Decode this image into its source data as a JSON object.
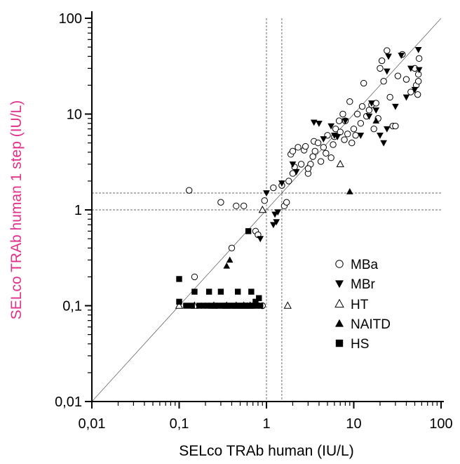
{
  "chart_data": {
    "type": "scatter",
    "title": "",
    "xlabel": "SELco TRAb human  (IU/L)",
    "ylabel": "SELco TRAb human 1 step (IU/L)",
    "ylabel_color": "#e0308a",
    "xscale": "log",
    "yscale": "log",
    "xlim": [
      0.01,
      100
    ],
    "ylim": [
      0.01,
      100
    ],
    "x_ticks": [
      0.01,
      0.1,
      1,
      10,
      100
    ],
    "y_ticks": [
      0.01,
      0.1,
      1,
      10,
      100
    ],
    "x_tick_labels": [
      "0,01",
      "0,1",
      "1",
      "10",
      "100"
    ],
    "y_tick_labels": [
      "0,01",
      "0,1",
      "1",
      "10",
      "100"
    ],
    "grid": false,
    "legend_position": "bottom-right",
    "reference_lines": {
      "identity": true,
      "vertical_x": [
        1.0,
        1.5
      ],
      "horizontal_y": [
        1.0,
        1.5
      ]
    },
    "series": [
      {
        "name": "MBa",
        "marker": "open-circle",
        "points": [
          [
            0.13,
            1.6
          ],
          [
            0.3,
            1.2
          ],
          [
            0.45,
            1.1
          ],
          [
            0.55,
            1.1
          ],
          [
            0.4,
            0.4
          ],
          [
            0.15,
            0.2
          ],
          [
            0.75,
            0.6
          ],
          [
            0.8,
            0.55
          ],
          [
            0.9,
            0.1
          ],
          [
            0.95,
            1.25
          ],
          [
            1.5,
            1.8
          ],
          [
            1.6,
            1.1
          ],
          [
            1.7,
            1.2
          ],
          [
            1.8,
            2.0
          ],
          [
            2.0,
            2.4
          ],
          [
            2.1,
            2.8
          ],
          [
            1.9,
            3.8
          ],
          [
            2.0,
            4.1
          ],
          [
            2.3,
            4.5
          ],
          [
            2.5,
            3.0
          ],
          [
            2.7,
            4.2
          ],
          [
            2.8,
            4.6
          ],
          [
            3.0,
            2.4
          ],
          [
            3.2,
            3.0
          ],
          [
            3.4,
            3.6
          ],
          [
            3.6,
            4.1
          ],
          [
            3.5,
            5.2
          ],
          [
            3.9,
            5.0
          ],
          [
            4.2,
            3.2
          ],
          [
            4.5,
            4.5
          ],
          [
            5.0,
            6.0
          ],
          [
            5.5,
            3.5
          ],
          [
            5.8,
            4.8
          ],
          [
            6.2,
            7.0
          ],
          [
            6.8,
            8.5
          ],
          [
            7.0,
            6.5
          ],
          [
            7.5,
            10.0
          ],
          [
            8.0,
            8.5
          ],
          [
            8.5,
            6.2
          ],
          [
            9.0,
            13.5
          ],
          [
            9.5,
            5.0
          ],
          [
            10.0,
            7.0
          ],
          [
            10.5,
            6.0
          ],
          [
            11.0,
            10.0
          ],
          [
            12.0,
            8.0
          ],
          [
            13.0,
            21.0
          ],
          [
            14.0,
            9.5
          ],
          [
            15.0,
            11.0
          ],
          [
            16.0,
            12.5
          ],
          [
            17.0,
            7.0
          ],
          [
            18.0,
            13.0
          ],
          [
            19.0,
            9.0
          ],
          [
            20.0,
            30.0
          ],
          [
            21.0,
            36.0
          ],
          [
            24.0,
            46.0
          ],
          [
            26.0,
            15.0
          ],
          [
            28.0,
            7.5
          ],
          [
            30.0,
            7.5
          ],
          [
            32.0,
            25.0
          ],
          [
            36.0,
            42.0
          ],
          [
            40.0,
            23.0
          ],
          [
            45.0,
            17.0
          ],
          [
            50.0,
            30.0
          ],
          [
            52.0,
            20.0
          ],
          [
            54.0,
            16.0
          ],
          [
            55.0,
            22.0
          ],
          [
            56.0,
            38.0
          ],
          [
            55.0,
            26.0
          ],
          [
            3.0,
            2.7
          ],
          [
            6.0,
            5.8
          ],
          [
            12.5,
            12.0
          ],
          [
            22.0,
            22.0
          ],
          [
            4.8,
            3.9
          ],
          [
            7.8,
            5.4
          ],
          [
            1.2,
            1.7
          ]
        ]
      },
      {
        "name": "MBr",
        "marker": "filled-down-triangle",
        "points": [
          [
            0.85,
            0.5
          ],
          [
            1.0,
            1.5
          ],
          [
            1.2,
            0.7
          ],
          [
            1.3,
            0.75
          ],
          [
            1.25,
            0.9
          ],
          [
            1.35,
            0.95
          ],
          [
            1.5,
            1.9
          ],
          [
            2.0,
            3.0
          ],
          [
            2.2,
            2.5
          ],
          [
            3.5,
            8.2
          ],
          [
            4.0,
            8.0
          ],
          [
            4.5,
            5.5
          ],
          [
            5.5,
            7.5
          ],
          [
            6.0,
            6.0
          ],
          [
            6.5,
            5.8
          ],
          [
            8.0,
            8.5
          ],
          [
            12.0,
            6.0
          ],
          [
            15.0,
            9.5
          ],
          [
            16.0,
            13.0
          ],
          [
            18.0,
            11.0
          ],
          [
            20.0,
            6.0
          ],
          [
            22.0,
            5.0
          ],
          [
            24.0,
            7.0
          ],
          [
            24.0,
            28.0
          ],
          [
            25.0,
            40.0
          ],
          [
            30.0,
            12.0
          ],
          [
            35.0,
            41.0
          ],
          [
            40.0,
            15.0
          ],
          [
            45.0,
            30.0
          ],
          [
            50.0,
            18.0
          ],
          [
            55.0,
            47.0
          ],
          [
            56.0,
            29.0
          ]
        ]
      },
      {
        "name": "HT",
        "marker": "open-up-triangle",
        "points": [
          [
            0.1,
            0.1
          ],
          [
            0.15,
            0.1
          ],
          [
            0.25,
            0.1
          ],
          [
            0.35,
            0.1
          ],
          [
            0.45,
            0.1
          ],
          [
            0.55,
            0.1
          ],
          [
            0.9,
            1.0
          ],
          [
            1.75,
            0.1
          ],
          [
            7.0,
            3.0
          ],
          [
            0.65,
            0.1
          ]
        ]
      },
      {
        "name": "NAITD",
        "marker": "filled-up-triangle",
        "points": [
          [
            0.35,
            0.26
          ],
          [
            0.38,
            0.3
          ],
          [
            0.6,
            0.1
          ],
          [
            0.82,
            0.1
          ],
          [
            9.0,
            1.55
          ],
          [
            18.0,
            8.5
          ]
        ]
      },
      {
        "name": "HS",
        "marker": "filled-square",
        "points": [
          [
            0.1,
            0.19
          ],
          [
            0.1,
            0.11
          ],
          [
            0.15,
            0.14
          ],
          [
            0.22,
            0.14
          ],
          [
            0.3,
            0.14
          ],
          [
            0.47,
            0.14
          ],
          [
            0.62,
            0.6
          ],
          [
            0.67,
            0.14
          ],
          [
            0.75,
            0.11
          ],
          [
            0.82,
            0.12
          ],
          [
            0.12,
            0.1
          ],
          [
            0.14,
            0.1
          ],
          [
            0.17,
            0.1
          ],
          [
            0.19,
            0.1
          ],
          [
            0.21,
            0.1
          ],
          [
            0.23,
            0.1
          ],
          [
            0.26,
            0.1
          ],
          [
            0.28,
            0.1
          ],
          [
            0.31,
            0.1
          ],
          [
            0.33,
            0.1
          ],
          [
            0.36,
            0.1
          ],
          [
            0.39,
            0.1
          ],
          [
            0.42,
            0.1
          ],
          [
            0.46,
            0.1
          ],
          [
            0.5,
            0.1
          ],
          [
            0.53,
            0.1
          ],
          [
            0.57,
            0.1
          ],
          [
            0.61,
            0.1
          ],
          [
            0.66,
            0.1
          ],
          [
            0.71,
            0.1
          ],
          [
            0.78,
            0.1
          ],
          [
            0.85,
            0.1
          ]
        ]
      }
    ]
  }
}
